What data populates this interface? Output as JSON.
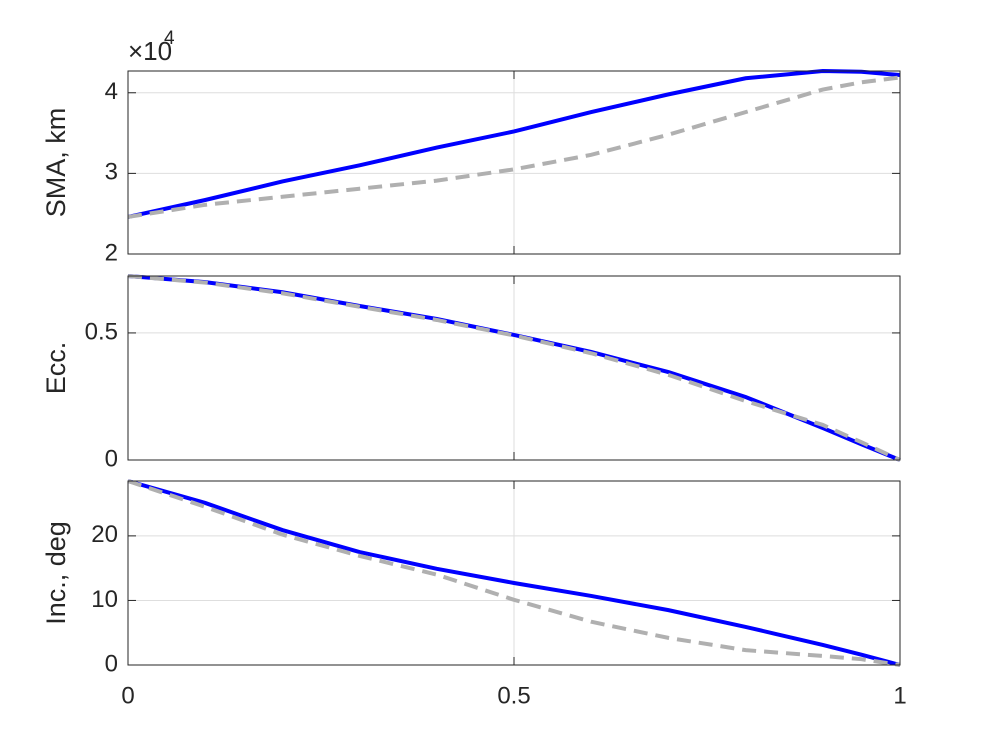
{
  "chart_data": [
    {
      "type": "line",
      "ylabel": "SMA, km",
      "y_multiplier_base": "×10",
      "y_multiplier_power": "4",
      "x": [
        0,
        0.1,
        0.2,
        0.3,
        0.4,
        0.5,
        0.6,
        0.7,
        0.8,
        0.9,
        0.95,
        1
      ],
      "series": [
        {
          "color": "#0000ff",
          "dash": "solid",
          "values": [
            24600,
            26700,
            29000,
            31000,
            33200,
            35200,
            37600,
            39800,
            41800,
            42700,
            42600,
            42200
          ]
        },
        {
          "color": "#b0b0b0",
          "dash": "dashed",
          "values": [
            24600,
            26100,
            27100,
            28100,
            29100,
            30500,
            32300,
            34800,
            37600,
            40400,
            41300,
            41900
          ]
        }
      ],
      "xlim": [
        0,
        1
      ],
      "xticks": [
        0,
        0.5,
        1
      ],
      "xticklabels": false,
      "ylim": [
        20000,
        42700
      ],
      "yticks": [
        {
          "value": 20000,
          "label": "2"
        },
        {
          "value": 30000,
          "label": "3"
        },
        {
          "value": 40000,
          "label": "4"
        }
      ],
      "grid": true
    },
    {
      "type": "line",
      "ylabel": "Ecc.",
      "x": [
        0,
        0.1,
        0.2,
        0.3,
        0.4,
        0.5,
        0.6,
        0.7,
        0.8,
        0.9,
        0.95,
        1
      ],
      "series": [
        {
          "color": "#0000ff",
          "dash": "solid",
          "values": [
            0.724,
            0.7,
            0.66,
            0.606,
            0.555,
            0.492,
            0.425,
            0.346,
            0.248,
            0.126,
            0.062,
            0
          ]
        },
        {
          "color": "#b0b0b0",
          "dash": "dashed",
          "values": [
            0.724,
            0.698,
            0.656,
            0.603,
            0.551,
            0.49,
            0.42,
            0.335,
            0.232,
            0.138,
            0.07,
            0
          ]
        }
      ],
      "xlim": [
        0,
        1
      ],
      "xticks": [
        0,
        0.5,
        1
      ],
      "xticklabels": false,
      "ylim": [
        0,
        0.724
      ],
      "yticks": [
        0,
        0.5
      ],
      "grid": true
    },
    {
      "type": "line",
      "ylabel": "Inc., deg",
      "x": [
        0,
        0.1,
        0.2,
        0.3,
        0.4,
        0.5,
        0.6,
        0.7,
        0.8,
        0.9,
        0.95,
        1
      ],
      "series": [
        {
          "color": "#0000ff",
          "dash": "solid",
          "values": [
            28.5,
            25.1,
            20.9,
            17.5,
            14.9,
            12.7,
            10.7,
            8.5,
            5.9,
            3.1,
            1.6,
            0
          ]
        },
        {
          "color": "#b0b0b0",
          "dash": "dashed",
          "values": [
            28.5,
            24.5,
            20.2,
            16.9,
            14.0,
            10.1,
            6.7,
            4.2,
            2.3,
            1.4,
            0.9,
            0
          ]
        }
      ],
      "xlim": [
        0,
        1
      ],
      "xticks": [
        0,
        0.5,
        1
      ],
      "xticklabels": true,
      "ylim": [
        0,
        28.5
      ],
      "yticks": [
        0,
        10,
        20
      ],
      "grid": true
    }
  ]
}
